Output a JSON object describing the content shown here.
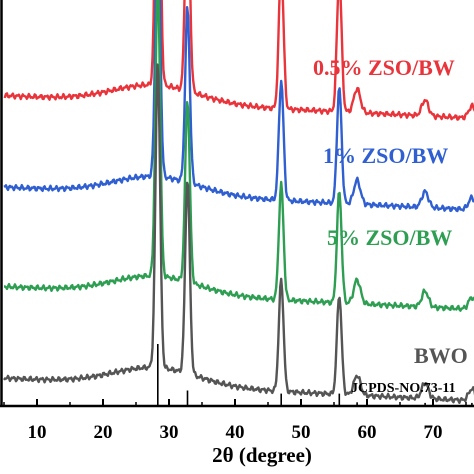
{
  "chart_data": {
    "type": "line",
    "xlabel": "2θ (degree)",
    "ylabel": "",
    "xlim": [
      5,
      80
    ],
    "x_ticks": [
      10,
      20,
      30,
      40,
      50,
      60,
      70
    ],
    "grid": false,
    "legend": "inline labels at right",
    "series": [
      {
        "name": "0.5% ZSO/BW",
        "color": "#e8343a",
        "baseline": 0.78,
        "peaks": [
          [
            28.3,
            0.9
          ],
          [
            32.8,
            0.53
          ],
          [
            47.0,
            0.36
          ],
          [
            55.8,
            0.34
          ],
          [
            58.5,
            0.06
          ],
          [
            68.8,
            0.04
          ],
          [
            75.9,
            0.03
          ]
        ]
      },
      {
        "name": "1% ZSO/BW",
        "color": "#2f5fd0",
        "baseline": 0.55,
        "peaks": [
          [
            28.3,
            0.7
          ],
          [
            32.8,
            0.44
          ],
          [
            47.0,
            0.3
          ],
          [
            55.8,
            0.29
          ],
          [
            58.5,
            0.06
          ],
          [
            68.8,
            0.04
          ],
          [
            75.9,
            0.03
          ]
        ]
      },
      {
        "name": "5% ZSO/BW",
        "color": "#2e9e52",
        "baseline": 0.3,
        "peaks": [
          [
            28.3,
            0.75
          ],
          [
            32.8,
            0.46
          ],
          [
            47.0,
            0.29
          ],
          [
            55.8,
            0.28
          ],
          [
            58.5,
            0.06
          ],
          [
            68.8,
            0.04
          ],
          [
            75.9,
            0.03
          ]
        ]
      },
      {
        "name": "BWO",
        "color": "#555555",
        "baseline": 0.07,
        "peaks": [
          [
            28.3,
            0.77
          ],
          [
            32.8,
            0.49
          ],
          [
            47.0,
            0.28
          ],
          [
            55.8,
            0.25
          ],
          [
            58.5,
            0.05
          ],
          [
            68.8,
            0.04
          ],
          [
            75.9,
            0.03
          ]
        ]
      }
    ],
    "reference": {
      "name": "JCPDS-NO.73-11",
      "lines": [
        [
          28.3,
          1.0
        ],
        [
          32.8,
          0.25
        ],
        [
          47.0,
          0.2
        ],
        [
          55.8,
          0.2
        ],
        [
          58.5,
          0.06
        ],
        [
          68.8,
          0.05
        ],
        [
          75.9,
          0.05
        ]
      ]
    }
  }
}
